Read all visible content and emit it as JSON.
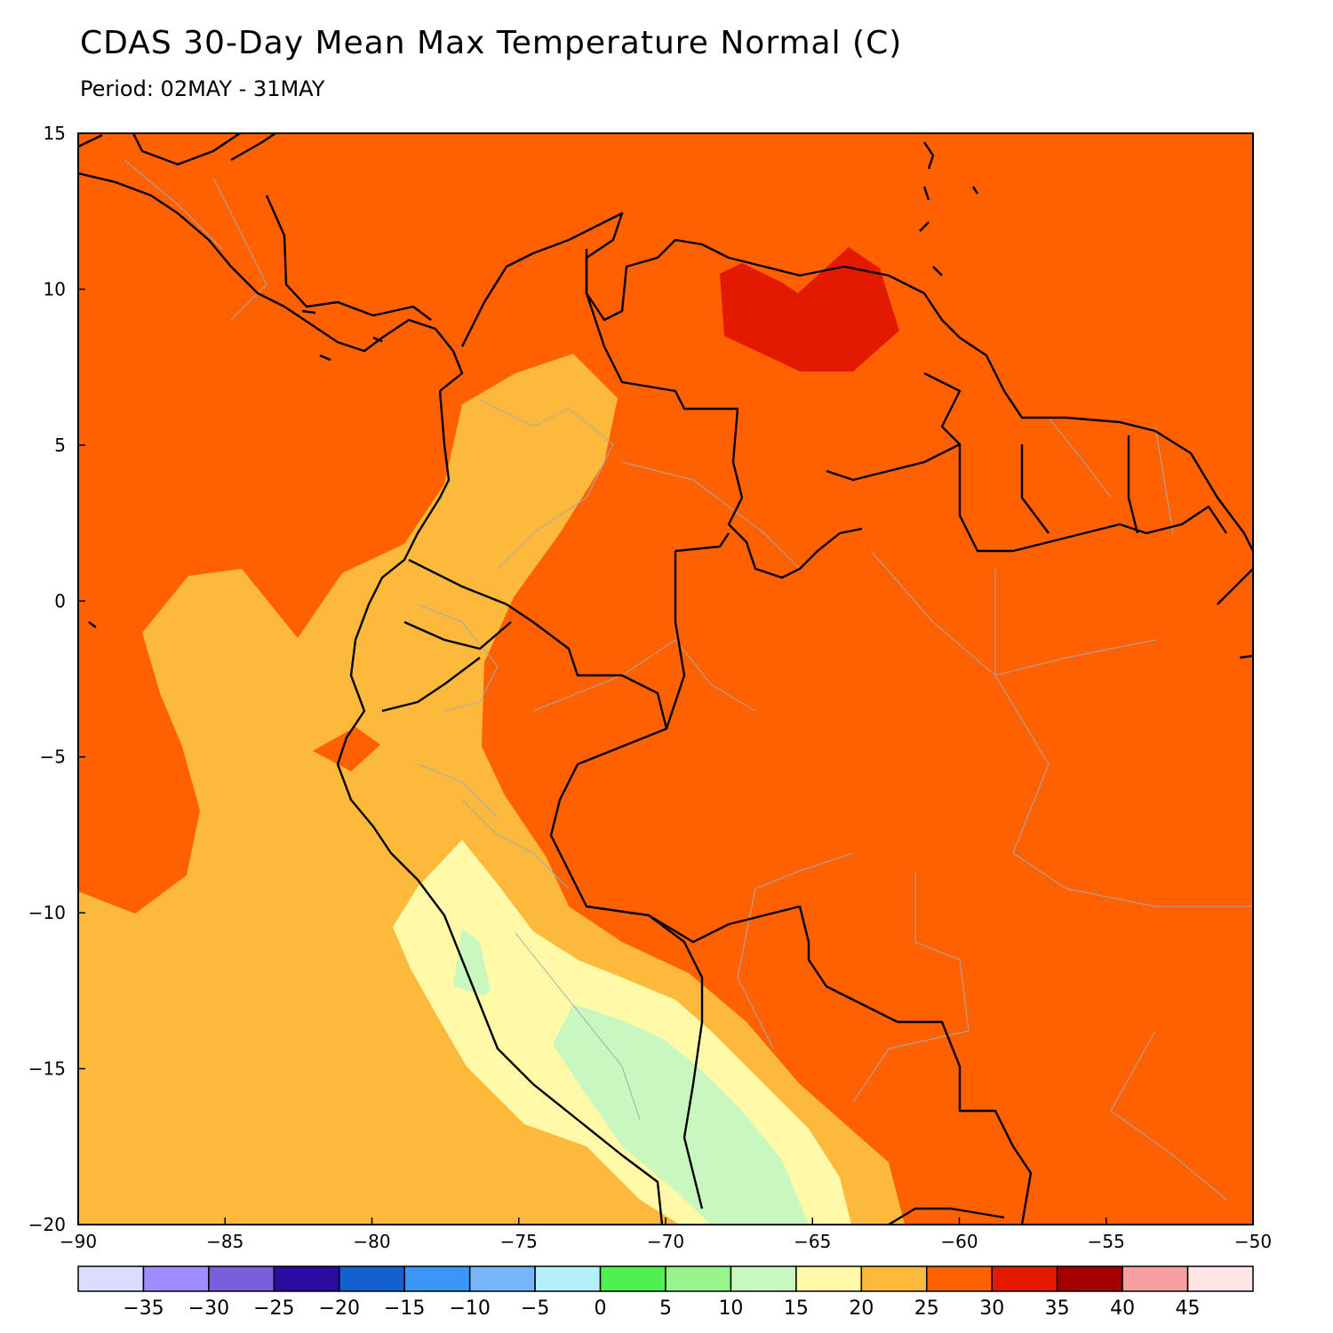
{
  "title": "CDAS 30-Day Mean Max Temperature Normal (C)",
  "subtitle": "Period: 02MAY - 31MAY",
  "map": {
    "lon_range": [
      -90,
      -50
    ],
    "lat_range": [
      -20,
      15
    ],
    "x_ticks": [
      "−90",
      "−85",
      "−80",
      "−75",
      "−70",
      "−65",
      "−60",
      "−55",
      "−50"
    ],
    "y_ticks": [
      "15",
      "10",
      "5",
      "0",
      "−5",
      "−10",
      "−15",
      "−20"
    ],
    "colors": {
      "c15_20": "#c8f7c0",
      "c20_25": "#fff9a8",
      "c25_30": "#fcb93b",
      "c30_35": "#ff6000",
      "c35_40": "#e31a00",
      "borders": "#000000",
      "subdivisions": "#aaaaaa"
    }
  },
  "colorbar": {
    "colors": [
      "#dcdcff",
      "#a08cff",
      "#7860dc",
      "#2c0ca0",
      "#1460cc",
      "#3c96f5",
      "#78b4fa",
      "#b4f0fa",
      "#50f050",
      "#96f58c",
      "#c8f7c0",
      "#fff9a8",
      "#fcb93b",
      "#ff6000",
      "#e31a00",
      "#a50000",
      "#f5a0a0",
      "#ffe4e4"
    ],
    "labels": [
      "−35",
      "−30",
      "−25",
      "−20",
      "−15",
      "−10",
      "−5",
      "0",
      "5",
      "10",
      "15",
      "20",
      "25",
      "30",
      "35",
      "40",
      "45"
    ]
  }
}
